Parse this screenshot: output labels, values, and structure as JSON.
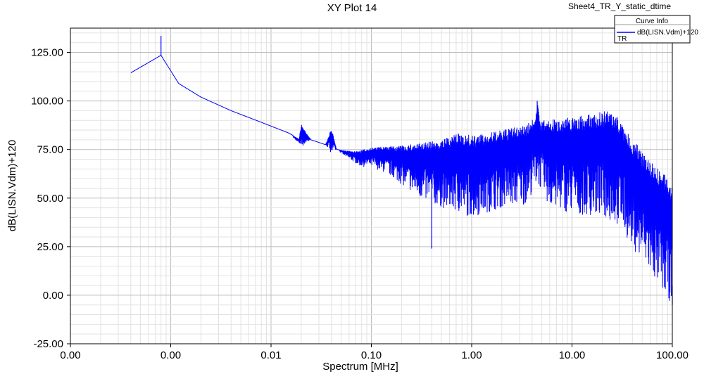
{
  "window": {
    "title": "XY Plot 14",
    "sheet_name": "Sheet4_TR_Y_static_dtime"
  },
  "legend": {
    "header": "Curve Info",
    "series_label": "dB(LISN.Vdm)+120",
    "sub_label": "TR",
    "placement": "top-right"
  },
  "chart_data": {
    "type": "line",
    "title": "XY Plot 14",
    "xlabel": "Spectrum [MHz]",
    "ylabel": "dB(LISN.Vdm)+120",
    "xscale": "log",
    "xlim": [
      0.0001,
      100
    ],
    "ylim": [
      -25,
      137.5
    ],
    "grid": true,
    "x_tick_labels": [
      "0.00",
      "0.00",
      "0.01",
      "0.10",
      "1.00",
      "10.00",
      "100.00"
    ],
    "y_ticks": [
      -25,
      0,
      25,
      50,
      75,
      100,
      125
    ],
    "y_tick_labels": [
      "-25.00",
      "0.00",
      "25.00",
      "50.00",
      "75.00",
      "100.00",
      "125.00"
    ],
    "series": [
      {
        "name": "dB(LISN.Vdm)+120",
        "color": "#0000ff",
        "envelope_upper": [
          [
            0.0004,
            114.5
          ],
          [
            0.0008,
            123.5
          ],
          [
            0.0012,
            109
          ],
          [
            0.002,
            102
          ],
          [
            0.004,
            95
          ],
          [
            0.008,
            89
          ],
          [
            0.015,
            83.5
          ],
          [
            0.019,
            80.5
          ],
          [
            0.02,
            88
          ],
          [
            0.025,
            80
          ],
          [
            0.035,
            77.5
          ],
          [
            0.04,
            86
          ],
          [
            0.045,
            75
          ],
          [
            0.07,
            74
          ],
          [
            0.1,
            76
          ],
          [
            0.2,
            77
          ],
          [
            0.5,
            80
          ],
          [
            0.8,
            84
          ],
          [
            1.0,
            82
          ],
          [
            2.0,
            85
          ],
          [
            3.5,
            88
          ],
          [
            4.2,
            91
          ],
          [
            4.5,
            100
          ],
          [
            4.8,
            90
          ],
          [
            8.0,
            91
          ],
          [
            15.0,
            93
          ],
          [
            22.0,
            95
          ],
          [
            28.0,
            93
          ],
          [
            35.0,
            84
          ],
          [
            60.0,
            70
          ],
          [
            100.0,
            58
          ]
        ],
        "envelope_lower": [
          [
            0.0004,
            114.5
          ],
          [
            0.0008,
            123.5
          ],
          [
            0.0012,
            109
          ],
          [
            0.002,
            102
          ],
          [
            0.004,
            95
          ],
          [
            0.008,
            89
          ],
          [
            0.015,
            83.5
          ],
          [
            0.019,
            78
          ],
          [
            0.02,
            76
          ],
          [
            0.025,
            80
          ],
          [
            0.035,
            77.5
          ],
          [
            0.04,
            73
          ],
          [
            0.045,
            75
          ],
          [
            0.06,
            70
          ],
          [
            0.08,
            66
          ],
          [
            0.1,
            66
          ],
          [
            0.15,
            62
          ],
          [
            0.3,
            50
          ],
          [
            0.5,
            45
          ],
          [
            1.0,
            40
          ],
          [
            2.0,
            45
          ],
          [
            3.5,
            47
          ],
          [
            4.5,
            58
          ],
          [
            6.0,
            45
          ],
          [
            10.0,
            42
          ],
          [
            20.0,
            40
          ],
          [
            30.0,
            35
          ],
          [
            40.0,
            25
          ],
          [
            60.0,
            10
          ],
          [
            100.0,
            -5
          ]
        ],
        "notable_points": [
          {
            "x": 0.0008,
            "y": 123.5,
            "note": "peak"
          },
          {
            "x": 0.4,
            "y": 24,
            "note": "deep dip"
          },
          {
            "x": 4.5,
            "y": 100,
            "note": "spike"
          },
          {
            "x": 100.0,
            "y": -5,
            "note": "lowest"
          }
        ]
      }
    ]
  }
}
